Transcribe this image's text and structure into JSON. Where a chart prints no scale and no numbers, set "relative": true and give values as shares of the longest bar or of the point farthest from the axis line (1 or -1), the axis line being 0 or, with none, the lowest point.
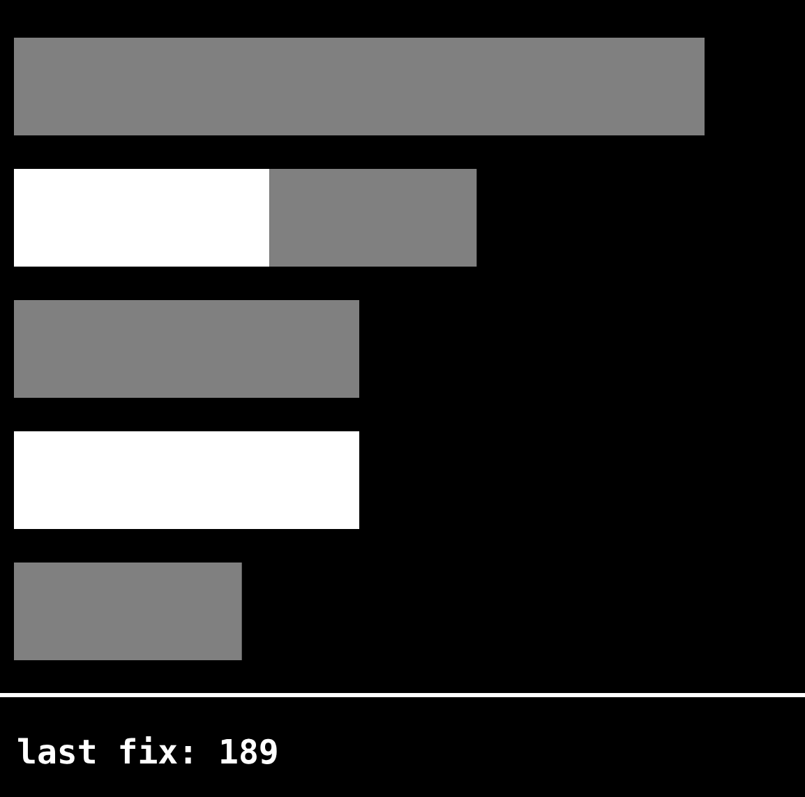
{
  "chart_data": {
    "type": "bar",
    "orientation": "horizontal",
    "stacked": true,
    "relative": true,
    "categories": [
      null,
      null,
      null,
      null,
      null
    ],
    "series": [
      {
        "color": "#ffffff",
        "values": [
          null,
          0.37,
          null,
          0.5,
          null
        ]
      },
      {
        "color": "#808080",
        "values": [
          1,
          0.3,
          0.5,
          null,
          0.33
        ]
      }
    ],
    "annotations": [
      "last fix: 189"
    ]
  }
}
